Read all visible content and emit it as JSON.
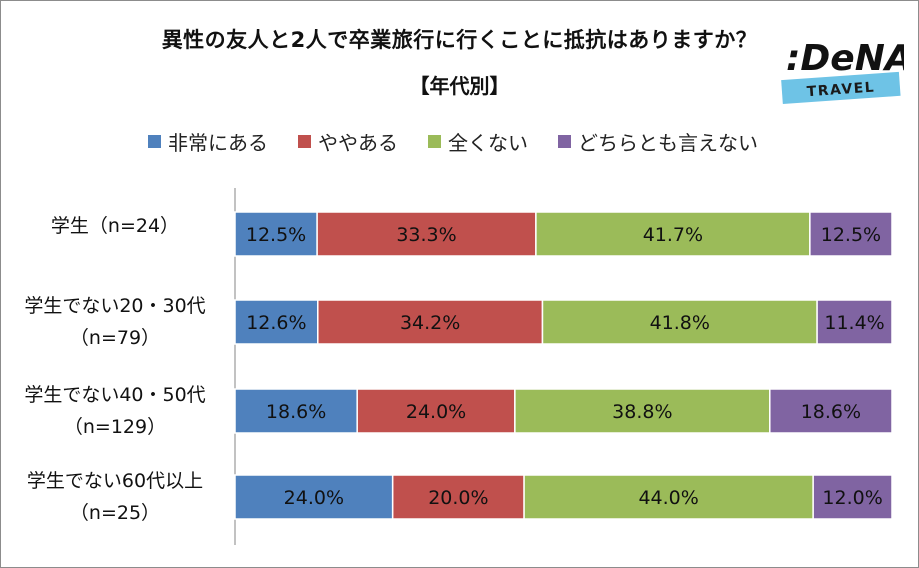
{
  "title": "異性の友人と2人で卒業旅行に行くことに抵抗はありますか？",
  "subtitle": "【年代別】",
  "logo": {
    "brand": "DeNA",
    "tagline": "TRAVEL"
  },
  "colors": {
    "very": "#4f81bd",
    "somewhat": "#c0504d",
    "not_at_all": "#9bbb59",
    "neither": "#8064a2"
  },
  "chart_data": {
    "type": "bar",
    "orientation": "horizontal",
    "stacked": true,
    "percent_stacked": true,
    "categories": [
      {
        "line1": "学生（n=24）",
        "line2": ""
      },
      {
        "line1": "学生でない20・30代",
        "line2": "（n=79）"
      },
      {
        "line1": "学生でない40・50代",
        "line2": "（n=129）"
      },
      {
        "line1": "学生でない60代以上",
        "line2": "（n=25）"
      }
    ],
    "series": [
      {
        "name": "非常にある",
        "color": "#4f81bd",
        "values": [
          12.5,
          12.6,
          18.6,
          24.0
        ]
      },
      {
        "name": "ややある",
        "color": "#c0504d",
        "values": [
          33.3,
          34.2,
          24.0,
          20.0
        ]
      },
      {
        "name": "全くない",
        "color": "#9bbb59",
        "values": [
          41.7,
          41.8,
          38.8,
          44.0
        ]
      },
      {
        "name": "どちらとも言えない",
        "color": "#8064a2",
        "values": [
          12.5,
          11.4,
          18.6,
          12.0
        ]
      }
    ],
    "value_suffix": "%",
    "legend_position": "top",
    "grid": false
  }
}
